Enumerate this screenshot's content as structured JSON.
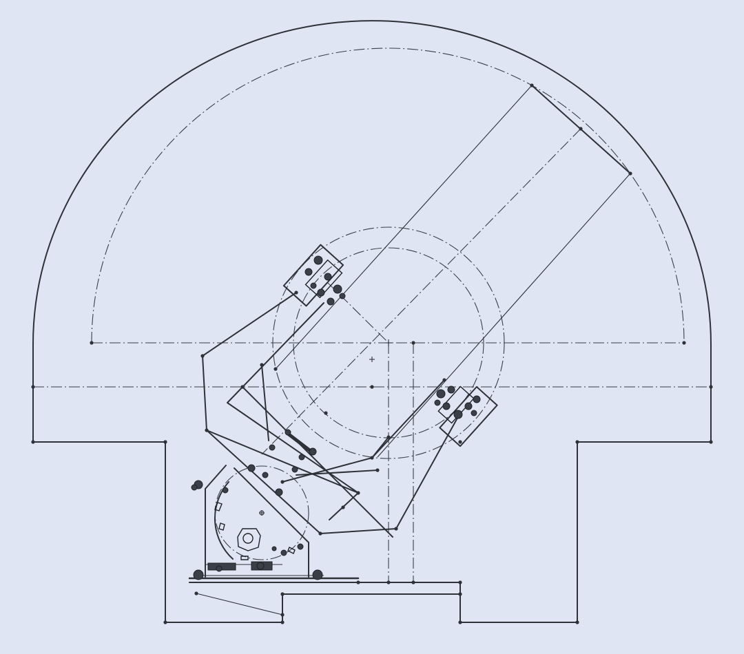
{
  "drawing": {
    "background": "#dfe5f2",
    "line_color": "#2e3138",
    "icons": [
      "origin-cross-icon",
      "center-mark-icon"
    ]
  }
}
